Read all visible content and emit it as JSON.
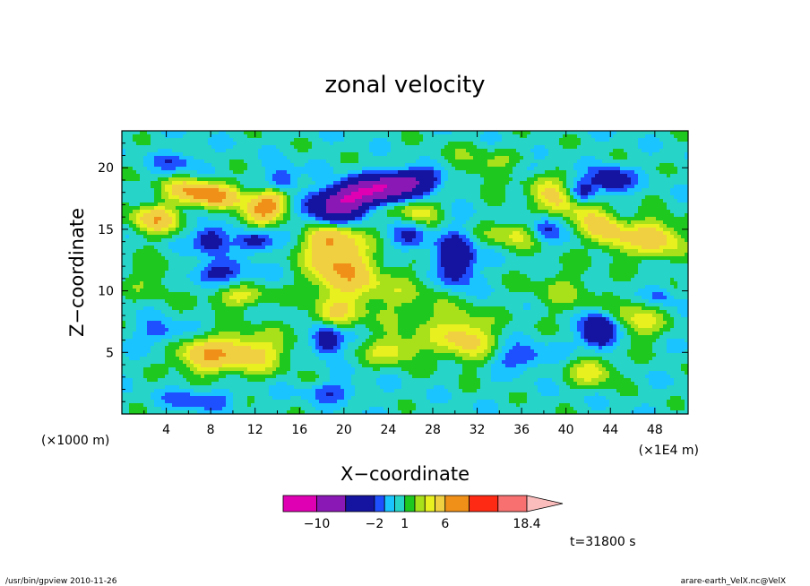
{
  "chart_data": {
    "type": "heatmap",
    "title": "zonal velocity",
    "xlabel": "X−coordinate",
    "ylabel": "Z−coordinate",
    "x_unit_label": "(×1E4 m)",
    "y_unit_label": "(×1000 m)",
    "x_ticks": [
      "4",
      "8",
      "12",
      "16",
      "20",
      "24",
      "28",
      "32",
      "36",
      "40",
      "44",
      "48"
    ],
    "y_ticks": [
      "5",
      "10",
      "15",
      "20"
    ],
    "xlim": [
      0,
      51
    ],
    "ylim": [
      0,
      23
    ],
    "colorbar": {
      "levels": [
        -14,
        -10,
        -6,
        -2,
        -1,
        0,
        1,
        2,
        3,
        4,
        6,
        10,
        14,
        18.4
      ],
      "labels": [
        "−10",
        "−2",
        "1",
        "6",
        "18.4"
      ],
      "colors": [
        "#e000b4",
        "#8a18b4",
        "#1414a0",
        "#1e50ff",
        "#19c4ff",
        "#26d4c8",
        "#1ec81e",
        "#a8e01a",
        "#e8f020",
        "#f0d040",
        "#f09018",
        "#ff2a14",
        "#f87070",
        "#fbbcbc"
      ],
      "extend": "max"
    },
    "annotation": "t=31800 s",
    "footer_left": "/usr/bin/gpview  2010-11-26",
    "footer_right": "arare-earth_VelX.nc@VelX"
  }
}
